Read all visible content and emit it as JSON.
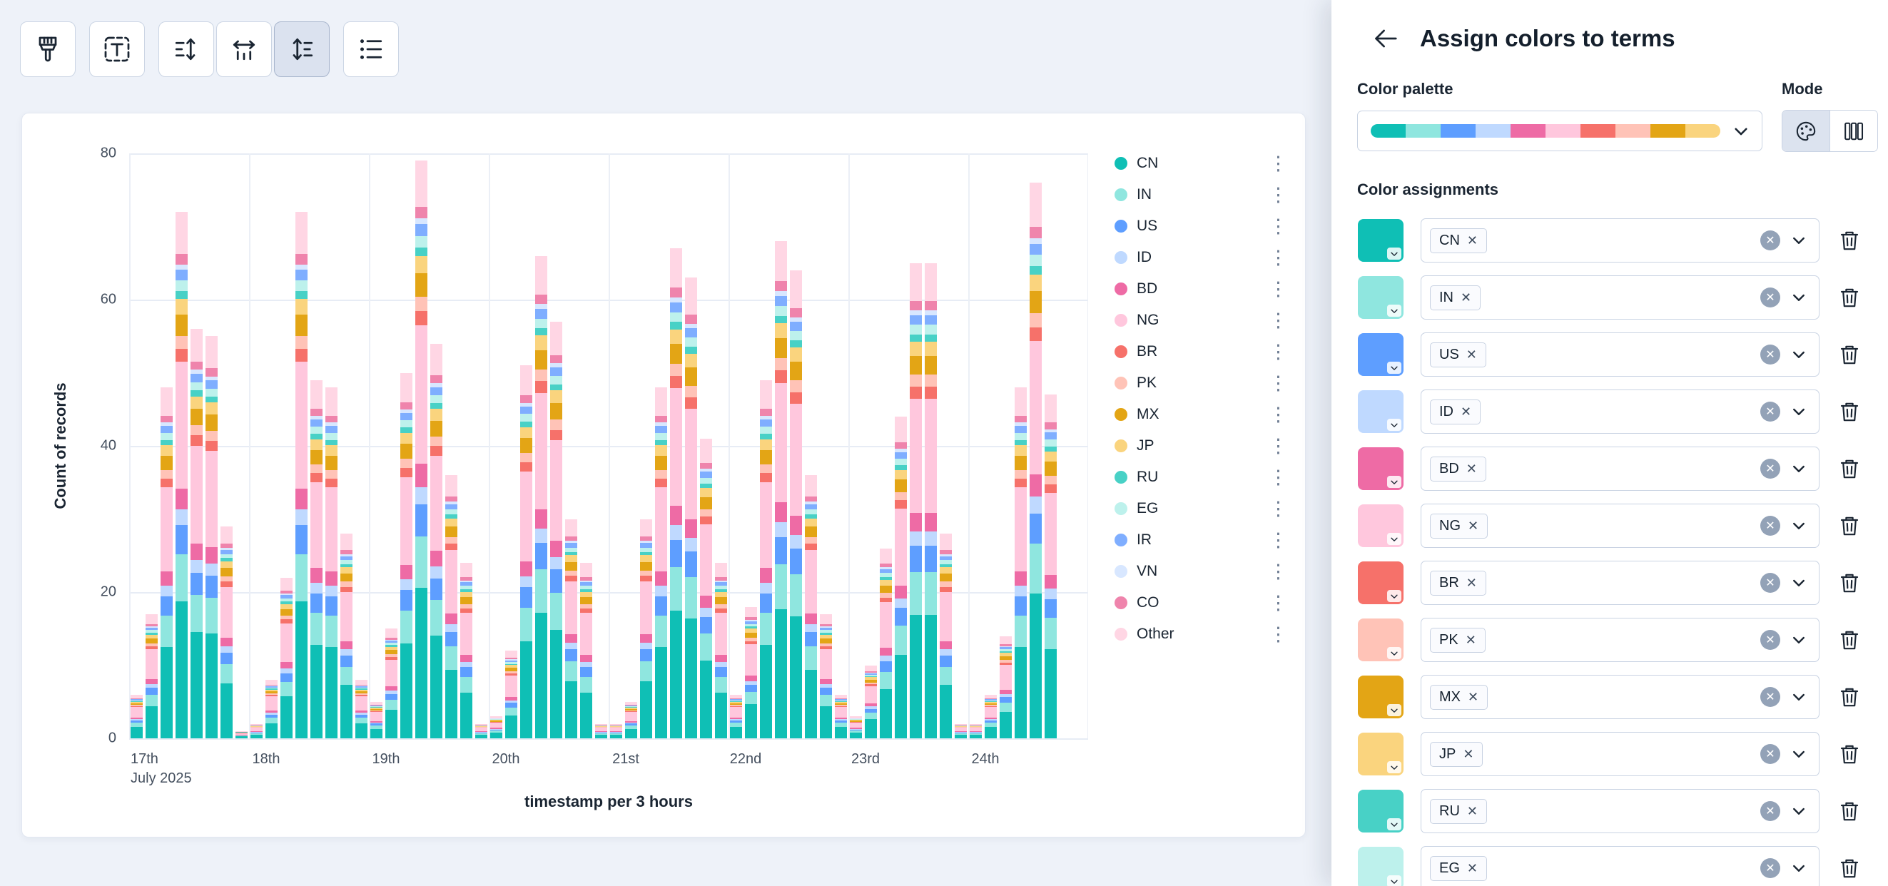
{
  "toolbar": {
    "buttons": [
      {
        "icon": "brush",
        "active": false
      },
      {
        "icon": "text-options",
        "active": false
      },
      {
        "icon": "axis-left",
        "group": "axes",
        "active": false
      },
      {
        "icon": "axis-bottom",
        "group": "axes",
        "active": false
      },
      {
        "icon": "axis-right",
        "group": "axes",
        "active": true
      },
      {
        "icon": "legend-list",
        "active": false
      }
    ]
  },
  "flyout": {
    "title": "Assign colors to terms",
    "palette_label": "Color palette",
    "mode_label": "Mode",
    "assignments_label": "Color assignments",
    "palette_preview": [
      "#0FBFB5",
      "#8FE6DF",
      "#5E9EFF",
      "#BFD9FF",
      "#EE6BA5",
      "#FFC7DD",
      "#F6716A",
      "#FFC3B7",
      "#E3A515",
      "#FAD47E"
    ],
    "mode_buttons": [
      {
        "icon": "palette",
        "active": true
      },
      {
        "icon": "columns",
        "active": false
      }
    ],
    "assignments": [
      {
        "term": "CN",
        "color": "#0FBFB5"
      },
      {
        "term": "IN",
        "color": "#8FE6DF"
      },
      {
        "term": "US",
        "color": "#5E9EFF"
      },
      {
        "term": "ID",
        "color": "#BFD9FF"
      },
      {
        "term": "BD",
        "color": "#EE6BA5"
      },
      {
        "term": "NG",
        "color": "#FFC7DD"
      },
      {
        "term": "BR",
        "color": "#F6716A"
      },
      {
        "term": "PK",
        "color": "#FFC3B7"
      },
      {
        "term": "MX",
        "color": "#E3A515"
      },
      {
        "term": "JP",
        "color": "#FAD47E"
      },
      {
        "term": "RU",
        "color": "#48D1C6"
      },
      {
        "term": "EG",
        "color": "#BDF1EC"
      }
    ]
  },
  "chart_data": {
    "type": "bar",
    "stacked": true,
    "title": "",
    "xlabel": "timestamp per 3 hours",
    "ylabel": "Count of records",
    "ylim": [
      0,
      80
    ],
    "yticks": [
      0,
      20,
      40,
      60,
      80
    ],
    "x_day_labels": [
      "17th",
      "18th",
      "19th",
      "20th",
      "21st",
      "22nd",
      "23rd",
      "24th"
    ],
    "x_first_sublabel": "July 2025",
    "bars_per_day": 8,
    "bar_interval_hours": 3,
    "bar_totals_by_day": [
      [
        6,
        17,
        48,
        72,
        56,
        55,
        29,
        1
      ],
      [
        2,
        8,
        22,
        72,
        49,
        48,
        28,
        8
      ],
      [
        5,
        15,
        50,
        79,
        54,
        36,
        24,
        2
      ],
      [
        3,
        12,
        51,
        66,
        57,
        30,
        24,
        2
      ],
      [
        2,
        5,
        30,
        48,
        67,
        63,
        41,
        24
      ],
      [
        6,
        18,
        49,
        68,
        64,
        36,
        17,
        6
      ],
      [
        3,
        10,
        26,
        44,
        65,
        65,
        28,
        2
      ],
      [
        2,
        6,
        14,
        48,
        76,
        47,
        0,
        0
      ]
    ],
    "series": [
      {
        "name": "CN",
        "color": "#0FBFB5",
        "fraction": 0.26
      },
      {
        "name": "IN",
        "color": "#8FE6DF",
        "fraction": 0.09
      },
      {
        "name": "US",
        "color": "#5E9EFF",
        "fraction": 0.055
      },
      {
        "name": "ID",
        "color": "#BFD9FF",
        "fraction": 0.03
      },
      {
        "name": "BD",
        "color": "#EE6BA5",
        "fraction": 0.04
      },
      {
        "name": "NG",
        "color": "#FFC7DD",
        "fraction": 0.24
      },
      {
        "name": "BR",
        "color": "#F6716A",
        "fraction": 0.025
      },
      {
        "name": "PK",
        "color": "#FFC3B7",
        "fraction": 0.025
      },
      {
        "name": "MX",
        "color": "#E3A515",
        "fraction": 0.04
      },
      {
        "name": "JP",
        "color": "#FAD47E",
        "fraction": 0.03
      },
      {
        "name": "RU",
        "color": "#48D1C6",
        "fraction": 0.015
      },
      {
        "name": "EG",
        "color": "#BDF1EC",
        "fraction": 0.02
      },
      {
        "name": "IR",
        "color": "#7FAEFF",
        "fraction": 0.02
      },
      {
        "name": "VN",
        "color": "#D8E7FF",
        "fraction": 0.01
      },
      {
        "name": "CO",
        "color": "#EF84AC",
        "fraction": 0.02
      },
      {
        "name": "Other",
        "color": "#FFD6E4",
        "fraction": 0.08
      }
    ],
    "legend_position": "right",
    "grid": true
  }
}
